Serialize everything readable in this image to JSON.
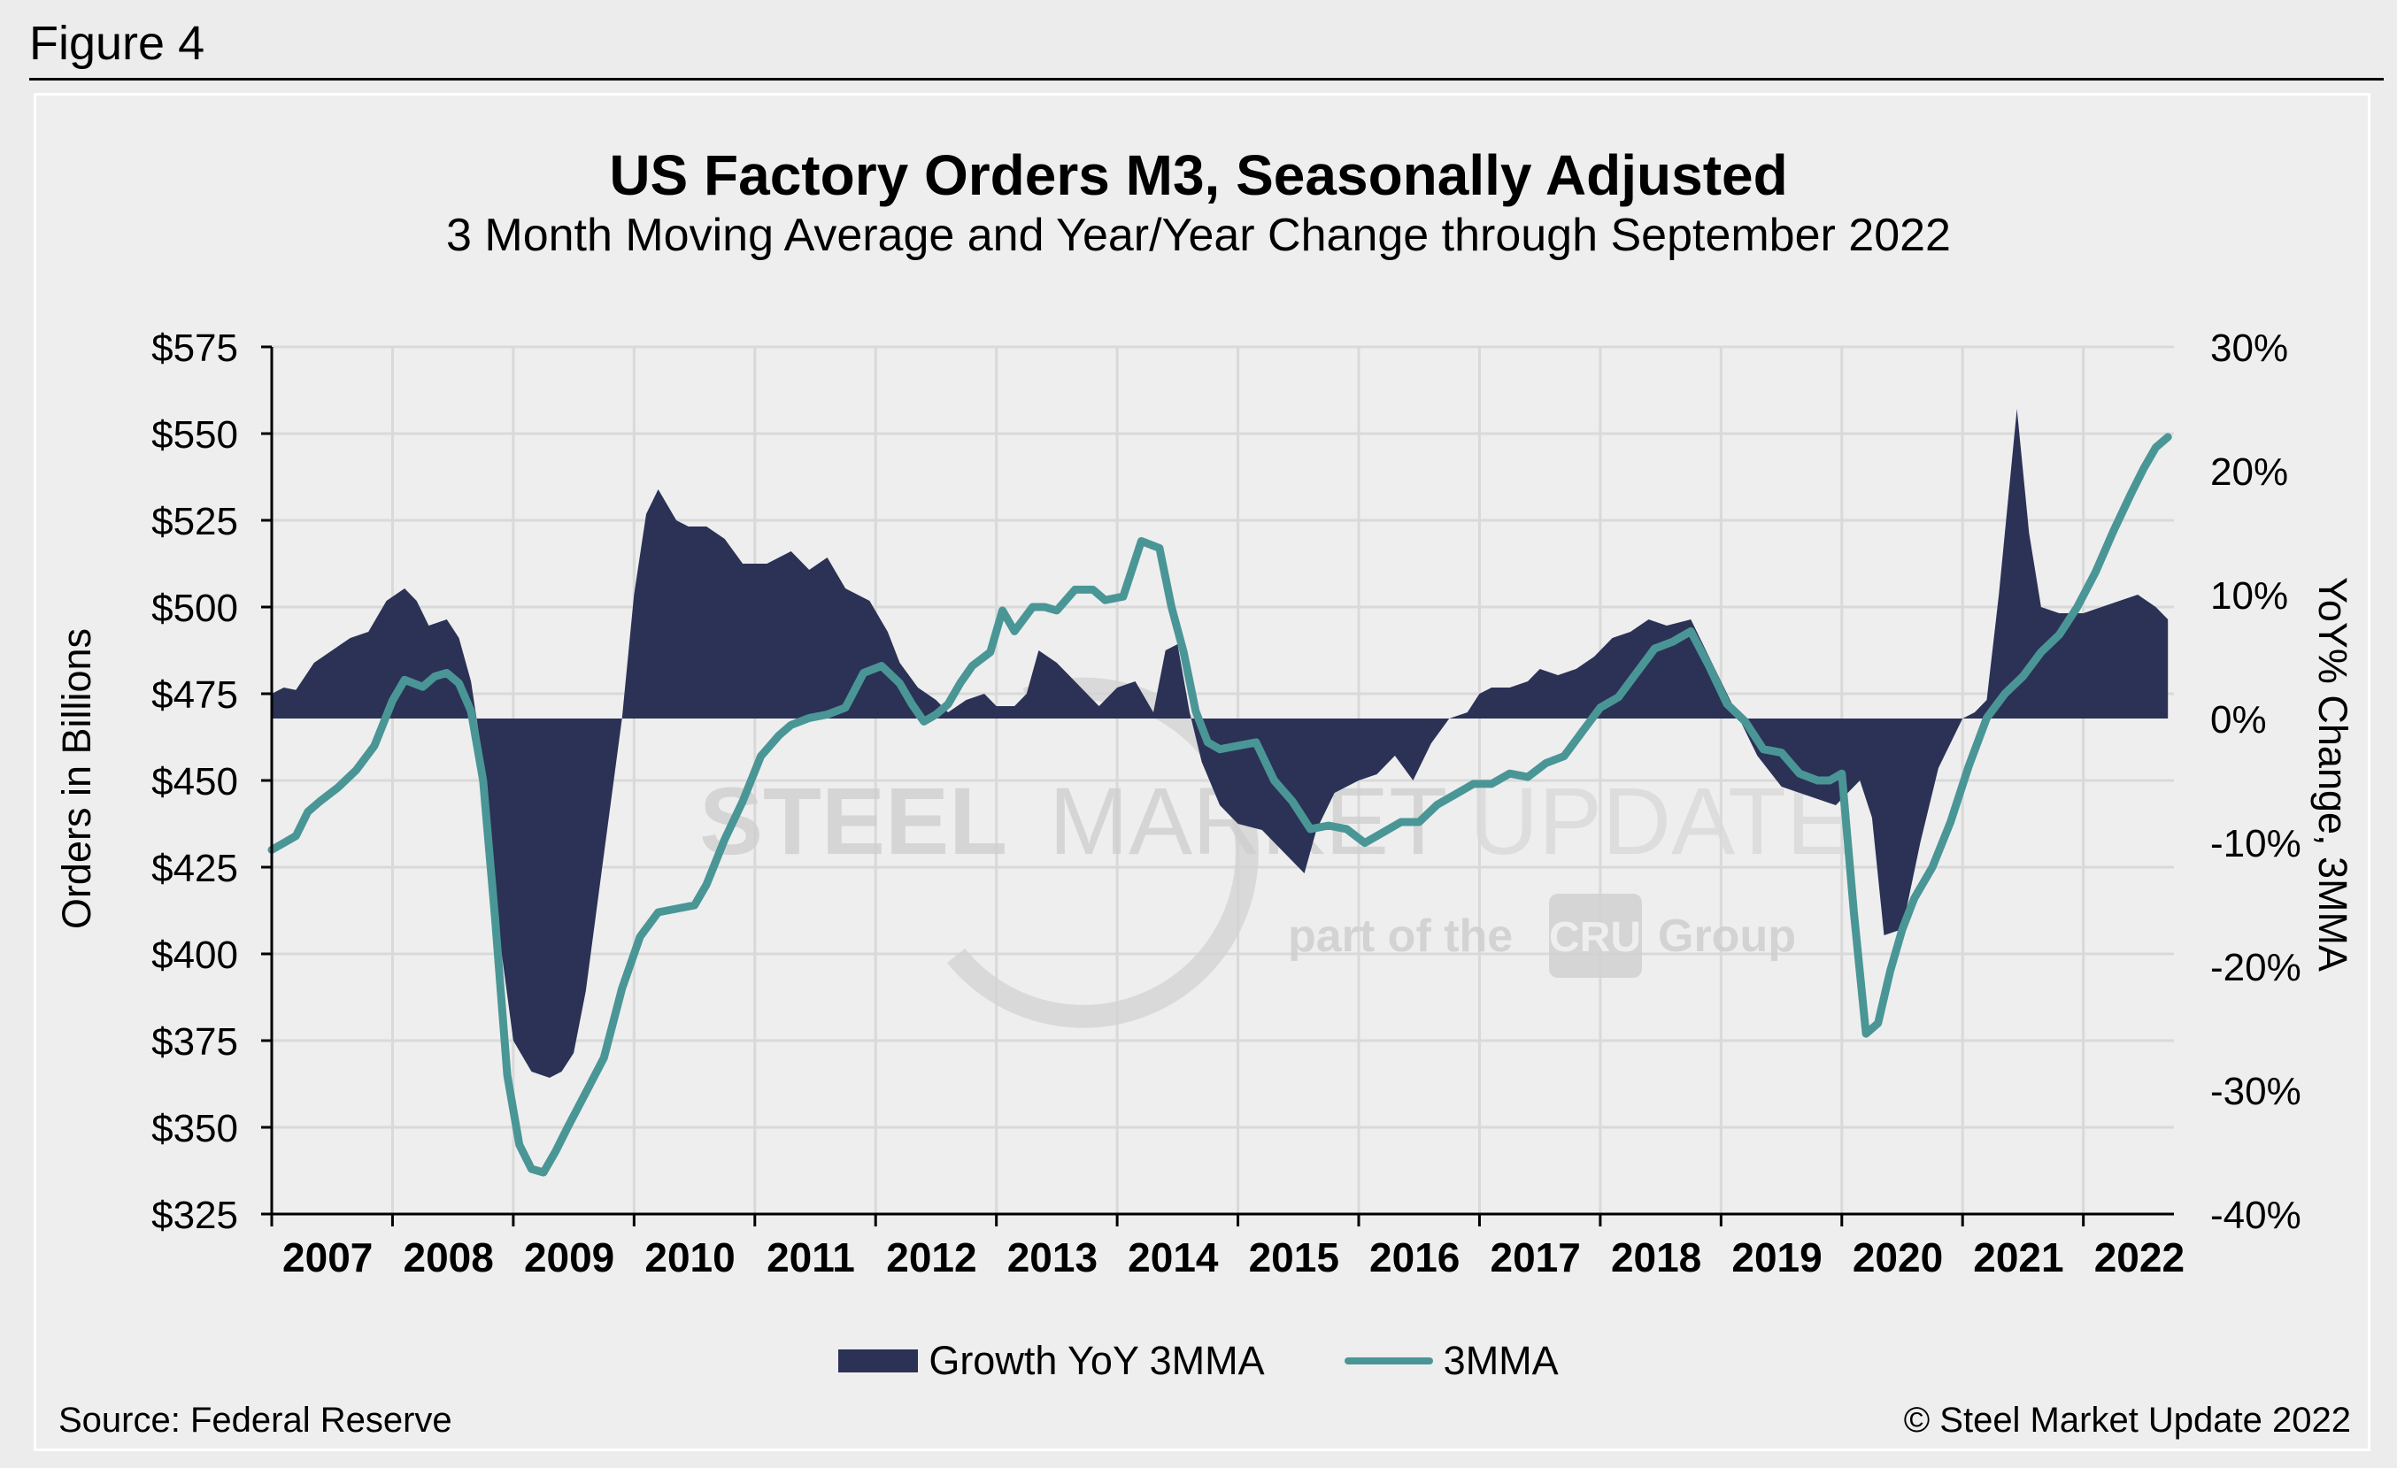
{
  "figure_label": "Figure 4",
  "source": "Source: Federal Reserve",
  "copyright": "© Steel Market Update 2022",
  "watermark": {
    "line1a": "STEEL",
    "line1b": "MARKET",
    "line1c": "UPDATE",
    "line2a": "part of the",
    "line2b": "CRU",
    "line2c": "Group"
  },
  "colors": {
    "growth_area": "#2b3256",
    "mma_line": "#4a9696",
    "grid": "#d9d9d9",
    "background": "#eeeeee"
  },
  "legend": {
    "growth_label": "Growth YoY 3MMA",
    "mma_label": "3MMA"
  },
  "chart_data": {
    "type": "line",
    "title": "US Factory Orders M3, Seasonally Adjusted",
    "subtitle": "3 Month Moving Average and Year/Year Change through September 2022",
    "ylabel": "Orders in Billions",
    "y2label": "YoY% Change, 3MMA",
    "ylim": [
      325,
      575
    ],
    "y2lim": [
      -40,
      30
    ],
    "xlim": [
      2007.0,
      2022.75
    ],
    "y_ticks": [
      575,
      550,
      525,
      500,
      475,
      450,
      425,
      400,
      375,
      350,
      325
    ],
    "y_tick_labels": [
      "$575",
      "$550",
      "$525",
      "$500",
      "$475",
      "$450",
      "$425",
      "$400",
      "$375",
      "$350",
      "$325"
    ],
    "y2_ticks": [
      30,
      20,
      10,
      0,
      -10,
      -20,
      -30,
      -40
    ],
    "y2_tick_labels": [
      "30%",
      "20%",
      "10%",
      "0%",
      "-10%",
      "-20%",
      "-30%",
      "-40%"
    ],
    "x_ticks": [
      2007,
      2008,
      2009,
      2010,
      2011,
      2012,
      2013,
      2014,
      2015,
      2016,
      2017,
      2018,
      2019,
      2020,
      2021,
      2022
    ],
    "x_tick_labels": [
      "2007",
      "2008",
      "2009",
      "2010",
      "2011",
      "2012",
      "2013",
      "2014",
      "2015",
      "2016",
      "2017",
      "2018",
      "2019",
      "2020",
      "2021",
      "2022"
    ],
    "grid": true,
    "legend_position": "bottom",
    "series": [
      {
        "name": "Growth YoY 3MMA",
        "type": "area",
        "axis": "right",
        "x": [
          2007.0,
          2007.1,
          2007.2,
          2007.35,
          2007.5,
          2007.65,
          2007.8,
          2007.95,
          2008.1,
          2008.2,
          2008.3,
          2008.45,
          2008.55,
          2008.65,
          2008.75,
          2008.85,
          2009.0,
          2009.15,
          2009.3,
          2009.4,
          2009.5,
          2009.6,
          2009.75,
          2009.9,
          2010.0,
          2010.1,
          2010.2,
          2010.35,
          2010.45,
          2010.6,
          2010.75,
          2010.9,
          2011.1,
          2011.3,
          2011.45,
          2011.6,
          2011.75,
          2011.95,
          2012.1,
          2012.2,
          2012.35,
          2012.5,
          2012.6,
          2012.75,
          2012.9,
          2013.0,
          2013.15,
          2013.25,
          2013.35,
          2013.5,
          2013.65,
          2013.85,
          2014.0,
          2014.15,
          2014.3,
          2014.4,
          2014.5,
          2014.6,
          2014.7,
          2014.85,
          2015.0,
          2015.2,
          2015.4,
          2015.55,
          2015.65,
          2015.8,
          2016.0,
          2016.15,
          2016.3,
          2016.45,
          2016.6,
          2016.75,
          2016.9,
          2017.0,
          2017.1,
          2017.25,
          2017.4,
          2017.5,
          2017.65,
          2017.8,
          2017.95,
          2018.1,
          2018.25,
          2018.4,
          2018.55,
          2018.75,
          2018.9,
          2019.1,
          2019.3,
          2019.5,
          2019.65,
          2019.8,
          2019.95,
          2020.05,
          2020.15,
          2020.25,
          2020.35,
          2020.5,
          2020.65,
          2020.8,
          2021.0,
          2021.1,
          2021.2,
          2021.3,
          2021.45,
          2021.55,
          2021.65,
          2021.8,
          2022.0,
          2022.15,
          2022.3,
          2022.45,
          2022.6,
          2022.7
        ],
        "values": [
          2.0,
          2.5,
          2.3,
          4.5,
          5.5,
          6.5,
          7.0,
          9.5,
          10.5,
          9.5,
          7.5,
          8.0,
          6.5,
          3.0,
          -3.5,
          -15.0,
          -26.0,
          -28.5,
          -29.0,
          -28.5,
          -27.0,
          -22.0,
          -11.0,
          0.0,
          10.0,
          16.5,
          18.5,
          16.0,
          15.5,
          15.5,
          14.5,
          12.5,
          12.5,
          13.5,
          12.0,
          13.0,
          10.5,
          9.5,
          7.0,
          4.5,
          2.5,
          1.5,
          0.5,
          1.5,
          2.0,
          1.0,
          1.0,
          2.0,
          5.5,
          4.5,
          3.0,
          1.0,
          2.5,
          3.0,
          0.5,
          5.5,
          6.0,
          0.5,
          -3.5,
          -7.0,
          -8.5,
          -9.0,
          -11.0,
          -12.5,
          -9.0,
          -6.0,
          -5.0,
          -4.5,
          -3.0,
          -5.0,
          -2.0,
          0.0,
          0.5,
          2.0,
          2.5,
          2.5,
          3.0,
          4.0,
          3.5,
          4.0,
          5.0,
          6.5,
          7.0,
          8.0,
          7.5,
          8.0,
          5.0,
          1.0,
          -3.0,
          -5.5,
          -6.0,
          -6.5,
          -7.0,
          -6.0,
          -5.0,
          -8.0,
          -17.5,
          -17.0,
          -10.0,
          -4.0,
          0.0,
          0.5,
          1.5,
          10.0,
          25.0,
          15.0,
          9.0,
          8.5,
          8.5,
          9.0,
          9.5,
          10.0,
          9.0,
          8.0
        ]
      },
      {
        "name": "3MMA",
        "type": "line",
        "axis": "left",
        "x": [
          2007.0,
          2007.1,
          2007.2,
          2007.3,
          2007.4,
          2007.55,
          2007.7,
          2007.85,
          2008.0,
          2008.1,
          2008.25,
          2008.35,
          2008.45,
          2008.55,
          2008.65,
          2008.75,
          2008.85,
          2008.95,
          2009.05,
          2009.15,
          2009.25,
          2009.35,
          2009.45,
          2009.6,
          2009.75,
          2009.9,
          2010.05,
          2010.2,
          2010.35,
          2010.5,
          2010.6,
          2010.75,
          2010.9,
          2011.05,
          2011.2,
          2011.3,
          2011.45,
          2011.6,
          2011.75,
          2011.9,
          2012.05,
          2012.2,
          2012.3,
          2012.4,
          2012.5,
          2012.6,
          2012.7,
          2012.8,
          2012.95,
          2013.05,
          2013.15,
          2013.3,
          2013.4,
          2013.5,
          2013.65,
          2013.8,
          2013.9,
          2014.05,
          2014.2,
          2014.35,
          2014.45,
          2014.55,
          2014.65,
          2014.75,
          2014.85,
          2015.0,
          2015.15,
          2015.3,
          2015.45,
          2015.6,
          2015.75,
          2015.9,
          2016.05,
          2016.2,
          2016.35,
          2016.5,
          2016.65,
          2016.8,
          2016.95,
          2017.1,
          2017.25,
          2017.4,
          2017.55,
          2017.7,
          2017.85,
          2018.0,
          2018.15,
          2018.3,
          2018.45,
          2018.6,
          2018.75,
          2018.9,
          2019.05,
          2019.2,
          2019.35,
          2019.5,
          2019.65,
          2019.8,
          2019.9,
          2020.0,
          2020.1,
          2020.2,
          2020.3,
          2020.4,
          2020.5,
          2020.6,
          2020.75,
          2020.9,
          2021.05,
          2021.2,
          2021.35,
          2021.5,
          2021.65,
          2021.8,
          2021.95,
          2022.1,
          2022.25,
          2022.4,
          2022.5,
          2022.6,
          2022.7
        ],
        "values": [
          430,
          432,
          434,
          441,
          444,
          448,
          453,
          460,
          473,
          479,
          477,
          480,
          481,
          478,
          470,
          450,
          410,
          365,
          345,
          338,
          337,
          343,
          350,
          360,
          370,
          390,
          405,
          412,
          413,
          414,
          420,
          433,
          444,
          457,
          463,
          466,
          468,
          469,
          471,
          481,
          483,
          478,
          472,
          467,
          469,
          472,
          478,
          483,
          487,
          499,
          493,
          500,
          500,
          499,
          505,
          505,
          502,
          503,
          519,
          517,
          500,
          487,
          470,
          461,
          459,
          460,
          461,
          450,
          444,
          436,
          437,
          436,
          432,
          435,
          438,
          438,
          443,
          446,
          449,
          449,
          452,
          451,
          455,
          457,
          464,
          471,
          474,
          481,
          488,
          490,
          493,
          483,
          472,
          467,
          459,
          458,
          452,
          450,
          450,
          452,
          412,
          377,
          380,
          395,
          407,
          416,
          425,
          438,
          454,
          468,
          475,
          480,
          487,
          492,
          500,
          510,
          522,
          533,
          540,
          546,
          549
        ]
      }
    ]
  }
}
